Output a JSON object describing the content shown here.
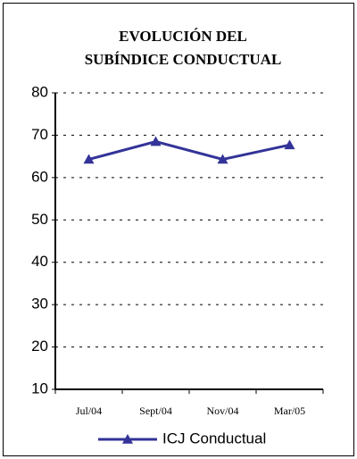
{
  "chart_data": {
    "type": "line",
    "title": [
      "EVOLUCIÓN DEL",
      "SUBÍNDICE CONDUCTUAL"
    ],
    "categories": [
      "Jul/04",
      "Sept/04",
      "Nov/04",
      "Mar/05"
    ],
    "series": [
      {
        "name": "ICJ Conductual",
        "color": "#333399",
        "values": [
          64.3,
          68.5,
          64.3,
          67.7
        ]
      }
    ],
    "ylim": [
      10,
      80
    ],
    "yticks": [
      10,
      20,
      30,
      40,
      50,
      60,
      70,
      80
    ],
    "grid": true,
    "legend": "bottom"
  }
}
